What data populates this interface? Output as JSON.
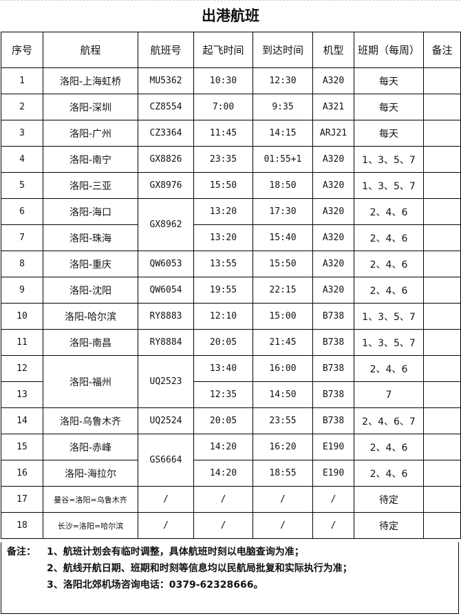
{
  "title": "出港航班",
  "headers": [
    "序号",
    "航程",
    "航班号",
    "起飞时间",
    "到达时间",
    "机型",
    "班期（每周）",
    "备注"
  ],
  "rows": [
    {
      "no": "1",
      "route": "洛阳-上海虹桥",
      "flight": "MU5362",
      "dep": "10:30",
      "arr": "12:30",
      "type": "A320",
      "days": "每天",
      "note": ""
    },
    {
      "no": "2",
      "route": "洛阳-深圳",
      "flight": "CZ8554",
      "dep": "7:00",
      "arr": "9:35",
      "type": "A321",
      "days": "每天",
      "note": ""
    },
    {
      "no": "3",
      "route": "洛阳-广州",
      "flight": "CZ3364",
      "dep": "11:45",
      "arr": "14:15",
      "type": "ARJ21",
      "days": "每天",
      "note": ""
    },
    {
      "no": "4",
      "route": "洛阳-南宁",
      "flight": "GX8826",
      "dep": "23:35",
      "arr": "01:55+1",
      "type": "A320",
      "days": "1、3、5、7",
      "note": ""
    },
    {
      "no": "5",
      "route": "洛阳-三亚",
      "flight": "GX8976",
      "dep": "15:50",
      "arr": "18:50",
      "type": "A320",
      "days": "1、3、5、7",
      "note": ""
    },
    {
      "no": "6",
      "route": "洛阳-海口",
      "flight": "GX8962",
      "dep": "13:20",
      "arr": "17:30",
      "type": "A320",
      "days": "2、4、6",
      "note": ""
    },
    {
      "no": "7",
      "route": "洛阳-珠海",
      "flight": "GX8962",
      "dep": "13:20",
      "arr": "15:40",
      "type": "A320",
      "days": "2、4、6",
      "note": ""
    },
    {
      "no": "8",
      "route": "洛阳-重庆",
      "flight": "QW6053",
      "dep": "13:55",
      "arr": "15:50",
      "type": "A320",
      "days": "2、4、6",
      "note": ""
    },
    {
      "no": "9",
      "route": "洛阳-沈阳",
      "flight": "QW6054",
      "dep": "19:55",
      "arr": "22:15",
      "type": "A320",
      "days": "2、4、6",
      "note": ""
    },
    {
      "no": "10",
      "route": "洛阳-哈尔滨",
      "flight": "RY8883",
      "dep": "12:10",
      "arr": "15:00",
      "type": "B738",
      "days": "1、3、5、7",
      "note": ""
    },
    {
      "no": "11",
      "route": "洛阳-南昌",
      "flight": "RY8884",
      "dep": "20:05",
      "arr": "21:45",
      "type": "B738",
      "days": "1、3、5、7",
      "note": ""
    },
    {
      "no": "12",
      "route": "洛阳-福州",
      "flight": "UQ2523",
      "dep": "13:40",
      "arr": "16:00",
      "type": "B738",
      "days": "2、4、6",
      "note": ""
    },
    {
      "no": "13",
      "route": "洛阳-福州",
      "flight": "UQ2523",
      "dep": "12:35",
      "arr": "14:50",
      "type": "B738",
      "days": "7",
      "note": ""
    },
    {
      "no": "14",
      "route": "洛阳-乌鲁木齐",
      "flight": "UQ2524",
      "dep": "20:05",
      "arr": "23:55",
      "type": "B738",
      "days": "2、4、6、7",
      "note": ""
    },
    {
      "no": "15",
      "route": "洛阳-赤峰",
      "flight": "GS6664",
      "dep": "14:20",
      "arr": "16:20",
      "type": "E190",
      "days": "2、4、6",
      "note": ""
    },
    {
      "no": "16",
      "route": "洛阳-海拉尔",
      "flight": "GS6664",
      "dep": "14:20",
      "arr": "18:55",
      "type": "E190",
      "days": "2、4、6",
      "note": ""
    },
    {
      "no": "17",
      "route": "曼谷=洛阳=乌鲁木齐",
      "flight": "/",
      "dep": "/",
      "arr": "/",
      "type": "/",
      "days": "待定",
      "note": ""
    },
    {
      "no": "18",
      "route": "长沙=洛阳=哈尔滨",
      "flight": "/",
      "dep": "/",
      "arr": "/",
      "type": "/",
      "days": "待定",
      "note": ""
    }
  ],
  "footer": {
    "label": "备注：",
    "notes": [
      "1、航班计划会有临时调整，具体航班时刻以电脑查询为准；",
      "2、航线开航日期、班期和时刻等信息均以民航局批复和实际执行为准；",
      "3、洛阳北郊机场咨询电话：0379-62328666。"
    ]
  }
}
